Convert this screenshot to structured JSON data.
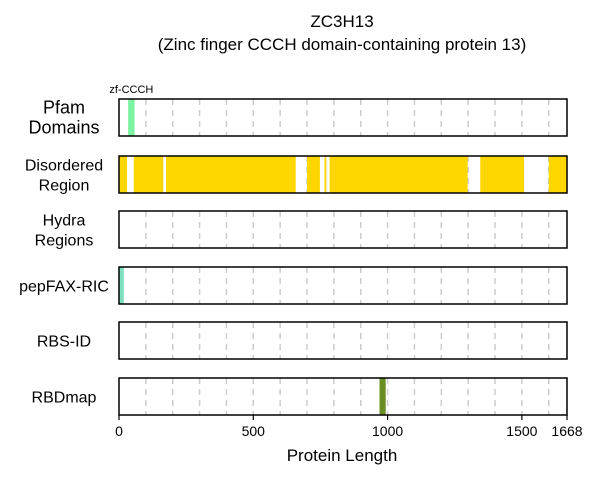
{
  "chart_data": {
    "type": "bar",
    "title": "ZC3H13",
    "subtitle": "(Zinc finger CCCH domain-containing protein 13)",
    "xlabel": "Protein Length",
    "xlim": [
      0,
      1668
    ],
    "xticks": [
      0,
      500,
      1000,
      1500,
      1668
    ],
    "grid_x": [
      100,
      200,
      300,
      400,
      500,
      600,
      700,
      800,
      900,
      1000,
      1100,
      1200,
      1300,
      1400,
      1500,
      1600
    ],
    "tracks": [
      {
        "label": "Pfam\nDomains",
        "segments": [
          {
            "start": 34,
            "end": 58,
            "color": "#7cf3a0",
            "label": "zf-CCCH"
          }
        ]
      },
      {
        "label": "Disordered\nRegion",
        "segments": [
          {
            "start": 1,
            "end": 30,
            "color": "#ffd700"
          },
          {
            "start": 55,
            "end": 165,
            "color": "#ffd700"
          },
          {
            "start": 175,
            "end": 658,
            "color": "#ffd700"
          },
          {
            "start": 700,
            "end": 748,
            "color": "#ffd700"
          },
          {
            "start": 765,
            "end": 772,
            "color": "#ffd700"
          },
          {
            "start": 784,
            "end": 1298,
            "color": "#ffd700"
          },
          {
            "start": 1345,
            "end": 1508,
            "color": "#ffd700"
          },
          {
            "start": 1600,
            "end": 1668,
            "color": "#ffd700"
          }
        ]
      },
      {
        "label": "Hydra\nRegions",
        "segments": []
      },
      {
        "label": "pepFAX-RIC",
        "segments": [
          {
            "start": 2,
            "end": 18,
            "color": "#7fe0c0"
          }
        ]
      },
      {
        "label": "RBS-ID",
        "segments": []
      },
      {
        "label": "RBDmap",
        "segments": [
          {
            "start": 970,
            "end": 993,
            "color": "#6b8e23"
          }
        ]
      }
    ]
  }
}
